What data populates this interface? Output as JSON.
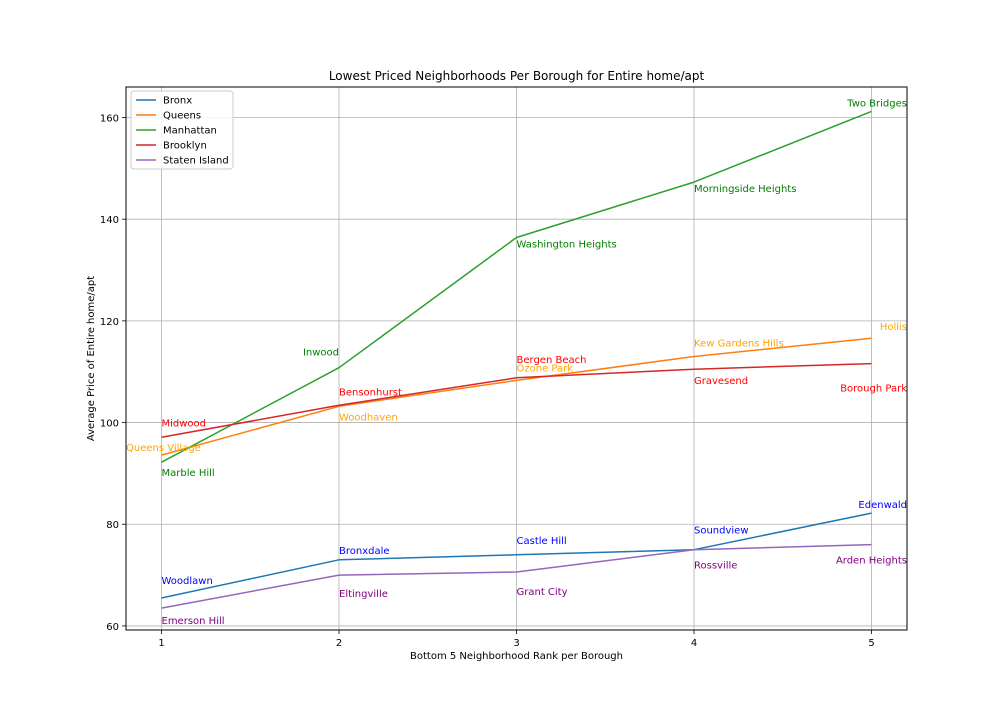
{
  "chart_data": {
    "type": "line",
    "title": "Lowest Priced Neighborhoods Per Borough for Entire home/apt",
    "xlabel": "Bottom 5 Neighborhood Rank per Borough",
    "ylabel": "Average Price of Entire home/apt",
    "x": [
      1,
      2,
      3,
      4,
      5
    ],
    "xlim": [
      0.8,
      5.2
    ],
    "ylim": [
      59.2,
      166
    ],
    "xticks": [
      "1",
      "2",
      "3",
      "4",
      "5"
    ],
    "yticks": [
      60,
      80,
      100,
      120,
      140,
      160
    ],
    "grid": true,
    "legend_position": "top-left",
    "series": [
      {
        "name": "Bronx",
        "color": "#1f77b4",
        "label_color": "#0000ff",
        "values": [
          65.5,
          73.0,
          74.0,
          75.0,
          82.2
        ],
        "labels": [
          "Woodlawn",
          "Bronxdale",
          "Castle Hill",
          "Soundview",
          "Edenwald"
        ]
      },
      {
        "name": "Queens",
        "color": "#ff7f0e",
        "label_color": "#ffa500",
        "values": [
          93.6,
          103.2,
          108.3,
          113.0,
          116.6
        ],
        "labels": [
          "Queens Village",
          "Woodhaven",
          "Ozone Park",
          "Kew Gardens Hills",
          "Hollis"
        ]
      },
      {
        "name": "Manhattan",
        "color": "#2ca02c",
        "label_color": "#008000",
        "values": [
          92.2,
          110.8,
          136.4,
          147.3,
          161.2
        ],
        "labels": [
          "Marble Hill",
          "Inwood",
          "Washington Heights",
          "Morningside Heights",
          "Two Bridges"
        ]
      },
      {
        "name": "Brooklyn",
        "color": "#d62728",
        "label_color": "#ff0000",
        "values": [
          97.1,
          103.4,
          108.8,
          110.5,
          111.6
        ],
        "labels": [
          "Midwood",
          "Bensonhurst",
          "Bergen Beach",
          "Gravesend",
          "Borough Park"
        ]
      },
      {
        "name": "Staten Island",
        "color": "#9467bd",
        "label_color": "#800080",
        "values": [
          63.5,
          70.0,
          70.6,
          75.0,
          76.0
        ],
        "labels": [
          "Emerson Hill",
          "Eltingville",
          "Grant City",
          "Rossville",
          "Arden Heights"
        ]
      }
    ]
  }
}
